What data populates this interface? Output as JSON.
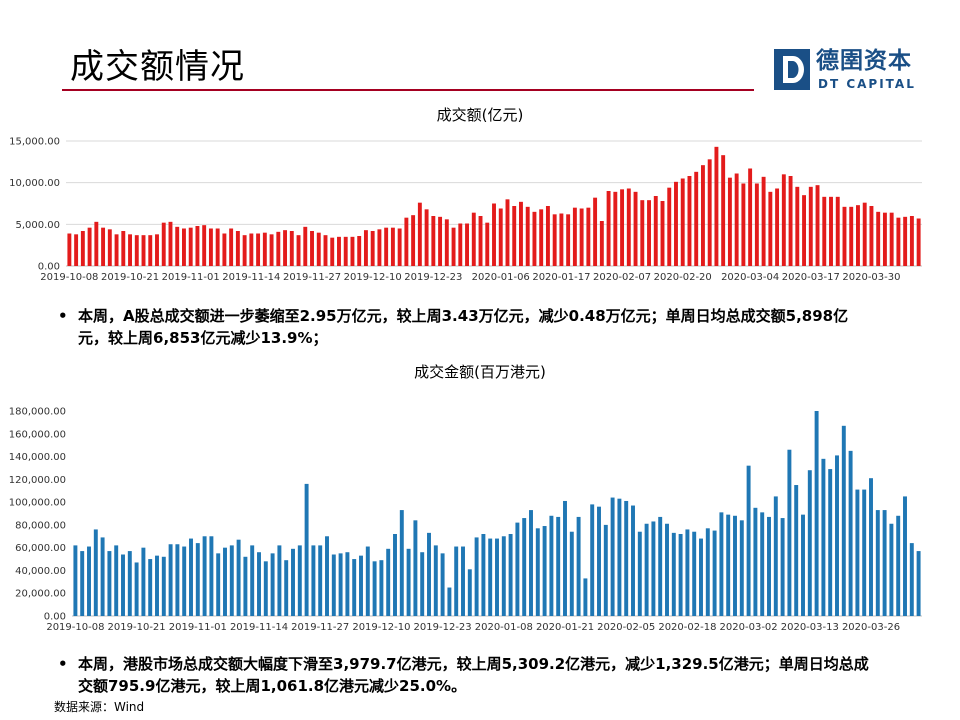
{
  "header": {
    "title": "成交额情况",
    "logo_cn": "德圉资本",
    "logo_en": "DT CAPITAL"
  },
  "colors": {
    "series1": "#e31b1b",
    "series2": "#1f77b4",
    "rule": "#a50021",
    "brand": "#1a4f86"
  },
  "chart_data": [
    {
      "type": "bar",
      "title": "成交额(亿元)",
      "xlabel": "",
      "ylabel": "",
      "ylim": [
        0,
        15000
      ],
      "yticks": [
        "0.00",
        "5,000.00",
        "10,000.00",
        "15,000.00"
      ],
      "ytick_values": [
        0,
        5000,
        10000,
        15000
      ],
      "grid": true,
      "color": "#e31b1b",
      "x_tick_labels": [
        "2019-10-08",
        "2019-10-21",
        "2019-11-01",
        "2019-11-14",
        "2019-11-27",
        "2019-12-10",
        "2019-12-23",
        "2020-01-06",
        "2020-01-17",
        "2020-02-07",
        "2020-02-20",
        "2020-03-04",
        "2020-03-17",
        "2020-03-30"
      ],
      "x_tick_index": [
        0,
        9,
        18,
        27,
        36,
        45,
        54,
        64,
        73,
        82,
        91,
        101,
        110,
        119
      ],
      "values": [
        3900,
        3800,
        4200,
        4600,
        5300,
        4600,
        4400,
        3800,
        4200,
        3800,
        3700,
        3700,
        3700,
        3800,
        5200,
        5300,
        4700,
        4500,
        4600,
        4800,
        4900,
        4500,
        4500,
        3900,
        4500,
        4200,
        3700,
        3900,
        3900,
        4000,
        3800,
        4100,
        4300,
        4200,
        3700,
        4700,
        4200,
        4000,
        3700,
        3400,
        3500,
        3500,
        3500,
        3600,
        4300,
        4200,
        4400,
        4600,
        4600,
        4500,
        5800,
        6100,
        7600,
        6800,
        6000,
        5900,
        5600,
        4600,
        5100,
        5100,
        6400,
        6000,
        5200,
        7500,
        6900,
        8000,
        7200,
        7700,
        7100,
        6500,
        6800,
        7200,
        6200,
        6300,
        6200,
        7000,
        6900,
        7000,
        8200,
        5400,
        9000,
        8900,
        9200,
        9300,
        8900,
        7900,
        7900,
        8400,
        7800,
        9400,
        10100,
        10500,
        10800,
        11300,
        12100,
        12800,
        14300,
        13300,
        10600,
        11100,
        9900,
        11700,
        9900,
        10700,
        8900,
        9300,
        11000,
        10800,
        9500,
        8500,
        9500,
        9700,
        8300,
        8300,
        8300,
        7100,
        7100,
        7300,
        7600,
        7200,
        6500,
        6400,
        6400,
        5800,
        5900,
        6000,
        5700
      ]
    },
    {
      "type": "bar",
      "title": "成交金额(百万港元)",
      "xlabel": "",
      "ylabel": "",
      "ylim": [
        0,
        180000
      ],
      "yticks": [
        "0.00",
        "20,000.00",
        "40,000.00",
        "60,000.00",
        "80,000.00",
        "100,000.00",
        "120,000.00",
        "140,000.00",
        "160,000.00",
        "180,000.00"
      ],
      "ytick_values": [
        0,
        20000,
        40000,
        60000,
        80000,
        100000,
        120000,
        140000,
        160000,
        180000
      ],
      "grid": false,
      "color": "#1f77b4",
      "x_tick_labels": [
        "2019-10-08",
        "2019-10-21",
        "2019-11-01",
        "2019-11-14",
        "2019-11-27",
        "2019-12-10",
        "2019-12-23",
        "2020-01-08",
        "2020-01-21",
        "2020-02-05",
        "2020-02-18",
        "2020-03-02",
        "2020-03-13",
        "2020-03-26"
      ],
      "x_tick_index": [
        0,
        9,
        18,
        27,
        36,
        45,
        54,
        63,
        72,
        81,
        90,
        99,
        108,
        117
      ],
      "values": [
        62000,
        57000,
        61000,
        76000,
        69000,
        57000,
        62000,
        54000,
        57000,
        47000,
        60000,
        50000,
        53000,
        52000,
        63000,
        63000,
        61000,
        68000,
        64000,
        70000,
        70000,
        55000,
        60000,
        62000,
        67000,
        52000,
        62000,
        56000,
        48000,
        55000,
        62000,
        49000,
        59000,
        62000,
        116000,
        62000,
        62000,
        70000,
        54000,
        55000,
        56000,
        50000,
        53000,
        61000,
        48000,
        49000,
        59000,
        72000,
        93000,
        59000,
        84000,
        56000,
        73000,
        62000,
        55000,
        25000,
        61000,
        61000,
        41000,
        69000,
        72000,
        68000,
        68000,
        70000,
        72000,
        82000,
        86000,
        93000,
        77000,
        79000,
        88000,
        87000,
        101000,
        74000,
        87000,
        33000,
        98000,
        96000,
        80000,
        104000,
        103000,
        101000,
        97000,
        74000,
        81000,
        83000,
        87000,
        81000,
        73000,
        72000,
        76000,
        74000,
        68000,
        77000,
        75000,
        91000,
        89000,
        88000,
        84000,
        132000,
        95000,
        91000,
        87000,
        105000,
        86000,
        146000,
        115000,
        89000,
        128000,
        180000,
        138000,
        129000,
        141000,
        167000,
        145000,
        111000,
        111000,
        121000,
        93000,
        93000,
        81000,
        88000,
        105000,
        64000,
        57000
      ]
    }
  ],
  "bullets": [
    "本周，A股总成交额进一步萎缩至2.95万亿元，较上周3.43万亿元，减少0.48万亿元；单周日均总成交额5,898亿元，较上周6,853亿元减少13.9%；",
    "本周，港股市场总成交额大幅度下滑至3,979.7亿港元，较上周5,309.2亿港元，减少1,329.5亿港元；单周日均总成交额795.9亿港元，较上周1,061.8亿港元减少25.0%。"
  ],
  "bullet_symbol": "•",
  "source": "数据来源：Wind"
}
